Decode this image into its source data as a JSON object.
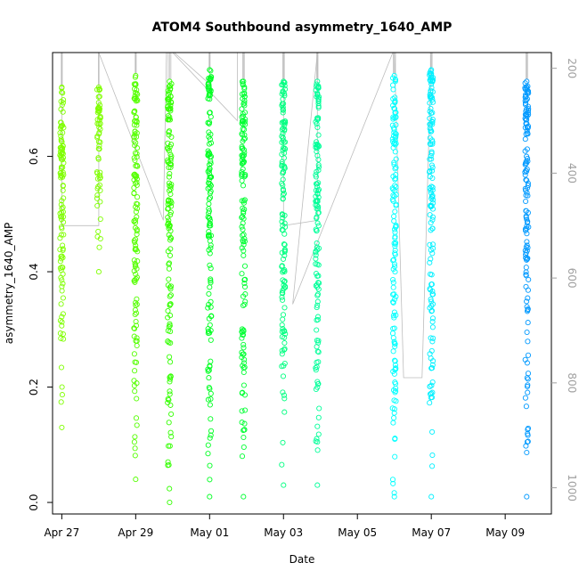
{
  "chart_data": {
    "type": "scatter",
    "title": "ATOM4 Southbound asymmetry_1640_AMP",
    "xlabel": "Date",
    "ylabel": "asymmetry_1640_AMP",
    "x_range": [
      "2025-04-26T18:00",
      "2025-05-10T06:00"
    ],
    "ylim": [
      -0.02,
      0.78
    ],
    "x_ticks": [
      {
        "date": "2025-04-27",
        "label": "Apr 27"
      },
      {
        "date": "2025-04-29",
        "label": "Apr 29"
      },
      {
        "date": "2025-05-01",
        "label": "May 01"
      },
      {
        "date": "2025-05-03",
        "label": "May 03"
      },
      {
        "date": "2025-05-05",
        "label": "May 05"
      },
      {
        "date": "2025-05-07",
        "label": "May 07"
      },
      {
        "date": "2025-05-09",
        "label": "May 09"
      }
    ],
    "y_ticks": [
      0.0,
      0.2,
      0.4,
      0.6
    ],
    "y_tick_labels": [
      "0.0",
      "0.2",
      "0.4",
      "0.6"
    ],
    "right_axis": {
      "range": [
        1050,
        170
      ],
      "ticks": [
        200,
        400,
        600,
        800,
        1000
      ],
      "tick_labels": [
        "200",
        "400",
        "600",
        "800",
        "1000"
      ],
      "color": "#a0a0a0"
    },
    "grid": false,
    "legend": "none",
    "clusters": [
      {
        "date": "2025-04-27T00:00",
        "width_hours": 1.0,
        "ymin": 0.13,
        "ymax": 0.72,
        "color": "#7fff00"
      },
      {
        "date": "2025-04-28T00:00",
        "width_hours": 0.6,
        "ymin": 0.4,
        "ymax": 0.72,
        "color": "#7fff00"
      },
      {
        "date": "2025-04-29T00:00",
        "width_hours": 1.0,
        "ymin": 0.04,
        "ymax": 0.74,
        "color": "#55ff00"
      },
      {
        "date": "2025-04-29T22:00",
        "width_hours": 2.6,
        "ymin": 0.0,
        "ymax": 0.73,
        "color": "#33ff00"
      },
      {
        "date": "2025-05-01T00:00",
        "width_hours": 1.0,
        "ymin": 0.01,
        "ymax": 0.75,
        "color": "#00ff22"
      },
      {
        "date": "2025-05-01T22:00",
        "width_hours": 1.6,
        "ymin": 0.01,
        "ymax": 0.73,
        "color": "#00ff33"
      },
      {
        "date": "2025-05-03T00:00",
        "width_hours": 1.6,
        "ymin": 0.03,
        "ymax": 0.73,
        "color": "#00ff80"
      },
      {
        "date": "2025-05-03T22:00",
        "width_hours": 1.2,
        "ymin": 0.03,
        "ymax": 0.73,
        "color": "#00ff99"
      },
      {
        "date": "2025-05-06T00:00",
        "width_hours": 2.2,
        "ymin": 0.01,
        "ymax": 0.74,
        "color": "#00ffff"
      },
      {
        "date": "2025-05-07T00:00",
        "width_hours": 1.6,
        "ymin": 0.01,
        "ymax": 0.75,
        "color": "#00f0ff"
      },
      {
        "date": "2025-05-09T14:00",
        "width_hours": 1.6,
        "ymin": 0.01,
        "ymax": 0.73,
        "color": "#0099ff"
      }
    ],
    "trace_series": {
      "axis": "right",
      "color": "#bdbdbd",
      "points": [
        [
          "2025-04-27T00:00",
          170
        ],
        [
          "2025-04-27T00:00",
          500
        ],
        [
          "2025-04-27T12:00",
          500
        ],
        [
          "2025-04-28T00:00",
          500
        ],
        [
          "2025-04-28T00:00",
          170
        ],
        [
          "2025-04-28T00:00",
          170
        ],
        [
          "2025-04-29T18:00",
          490
        ],
        [
          "2025-04-29T20:00",
          170
        ],
        [
          "2025-04-30T01:00",
          170
        ],
        [
          "2025-05-01T00:00",
          230
        ],
        [
          "2025-05-01T00:00",
          170
        ],
        [
          "2025-04-30T00:00",
          170
        ],
        [
          "2025-05-01T18:00",
          300
        ],
        [
          "2025-05-01T18:00",
          170
        ],
        [
          "2025-05-03T00:00",
          170
        ],
        [
          "2025-05-03T00:00",
          500
        ],
        [
          "2025-05-03T22:00",
          490
        ],
        [
          "2025-05-03T22:00",
          170
        ],
        [
          "2025-05-03T06:00",
          650
        ],
        [
          "2025-05-05T23:00",
          170
        ],
        [
          "2025-05-06T00:00",
          170
        ],
        [
          "2025-05-06T06:00",
          790
        ],
        [
          "2025-05-06T18:00",
          790
        ],
        [
          "2025-05-07T00:00",
          170
        ]
      ]
    }
  }
}
